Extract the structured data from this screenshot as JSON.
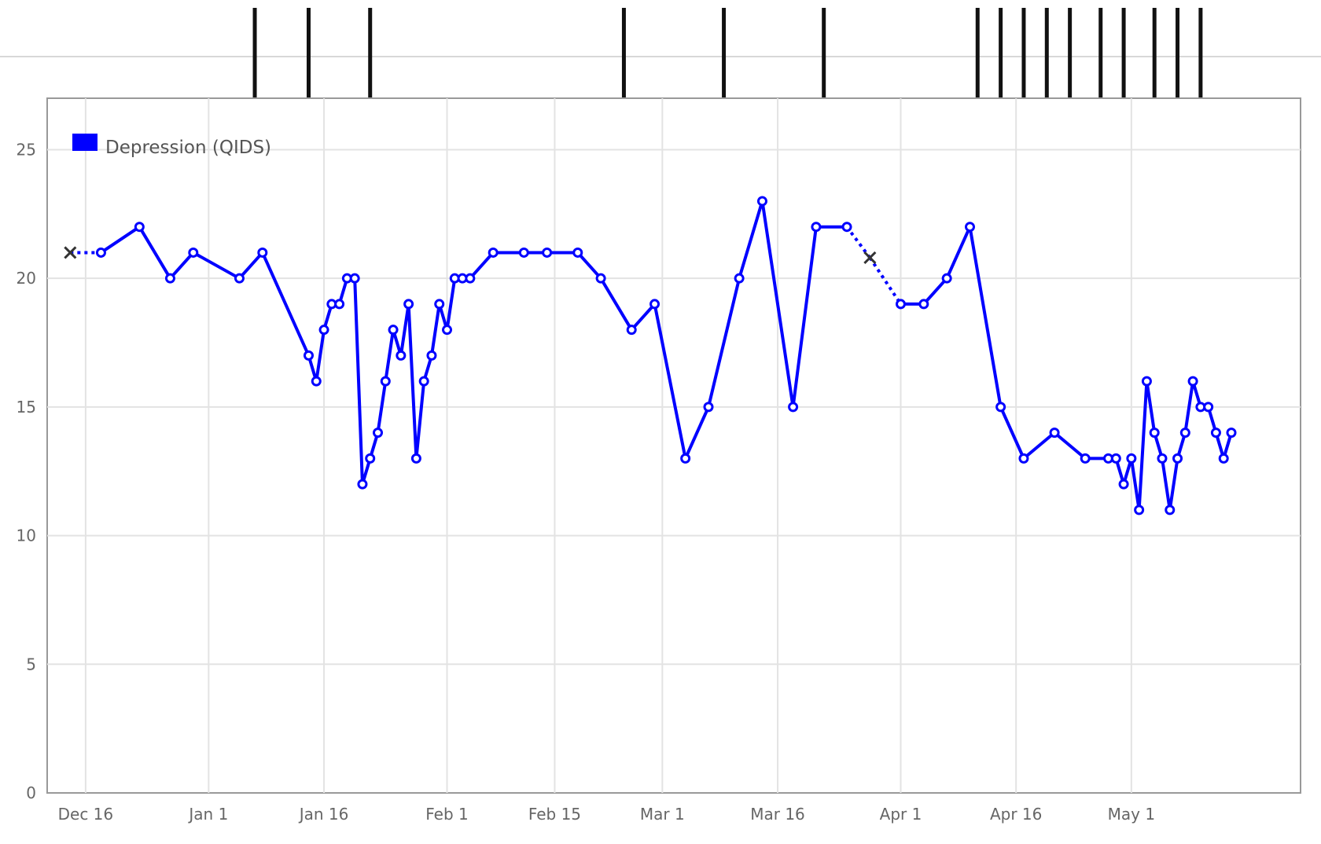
{
  "chart_data": {
    "type": "line",
    "title": "",
    "xlabel": "",
    "ylabel": "",
    "ylim": [
      0,
      27
    ],
    "xlim": [
      "Dec 11",
      "May 23"
    ],
    "grid": true,
    "legend_position": "top-left",
    "x_ticks": [
      {
        "date": "Dec 16",
        "label": "Dec 16"
      },
      {
        "date": "Jan 1",
        "label": "Jan 1"
      },
      {
        "date": "Jan 16",
        "label": "Jan 16"
      },
      {
        "date": "Feb 1",
        "label": "Feb 1"
      },
      {
        "date": "Feb 15",
        "label": "Feb 15"
      },
      {
        "date": "Mar 1",
        "label": "Mar 1"
      },
      {
        "date": "Mar 16",
        "label": "Mar 16"
      },
      {
        "date": "Apr 1",
        "label": "Apr 1"
      },
      {
        "date": "Apr 16",
        "label": "Apr 16"
      },
      {
        "date": "May 1",
        "label": "May 1"
      }
    ],
    "y_ticks": [
      "0",
      "5",
      "10",
      "15",
      "20",
      "25"
    ],
    "series": [
      {
        "name": "Depression (QIDS)",
        "color": "#0000ff",
        "points": [
          {
            "x": "Dec 18",
            "y": 21
          },
          {
            "x": "Dec 23",
            "y": 22
          },
          {
            "x": "Dec 27",
            "y": 20
          },
          {
            "x": "Dec 30",
            "y": 21
          },
          {
            "x": "Jan 5",
            "y": 20
          },
          {
            "x": "Jan 8",
            "y": 21
          },
          {
            "x": "Jan 14",
            "y": 17
          },
          {
            "x": "Jan 15",
            "y": 16
          },
          {
            "x": "Jan 16",
            "y": 18
          },
          {
            "x": "Jan 17",
            "y": 19
          },
          {
            "x": "Jan 18",
            "y": 19
          },
          {
            "x": "Jan 19",
            "y": 20
          },
          {
            "x": "Jan 20",
            "y": 20
          },
          {
            "x": "Jan 21",
            "y": 12
          },
          {
            "x": "Jan 22",
            "y": 13
          },
          {
            "x": "Jan 23",
            "y": 14
          },
          {
            "x": "Jan 24",
            "y": 16
          },
          {
            "x": "Jan 25",
            "y": 18
          },
          {
            "x": "Jan 26",
            "y": 17
          },
          {
            "x": "Jan 27",
            "y": 19
          },
          {
            "x": "Jan 28",
            "y": 13
          },
          {
            "x": "Jan 29",
            "y": 16
          },
          {
            "x": "Jan 30",
            "y": 17
          },
          {
            "x": "Jan 31",
            "y": 19
          },
          {
            "x": "Feb 1",
            "y": 18
          },
          {
            "x": "Feb 2",
            "y": 20
          },
          {
            "x": "Feb 3",
            "y": 20
          },
          {
            "x": "Feb 4",
            "y": 20
          },
          {
            "x": "Feb 7",
            "y": 21
          },
          {
            "x": "Feb 11",
            "y": 21
          },
          {
            "x": "Feb 14",
            "y": 21
          },
          {
            "x": "Feb 18",
            "y": 21
          },
          {
            "x": "Feb 21",
            "y": 20
          },
          {
            "x": "Feb 25",
            "y": 18
          },
          {
            "x": "Feb 28",
            "y": 19
          },
          {
            "x": "Mar 4",
            "y": 13
          },
          {
            "x": "Mar 7",
            "y": 15
          },
          {
            "x": "Mar 11",
            "y": 20
          },
          {
            "x": "Mar 14",
            "y": 23
          },
          {
            "x": "Mar 18",
            "y": 15
          },
          {
            "x": "Mar 21",
            "y": 22
          },
          {
            "x": "Mar 25",
            "y": 22
          },
          {
            "x": "Apr 1",
            "y": 19
          },
          {
            "x": "Apr 4",
            "y": 19
          },
          {
            "x": "Apr 7",
            "y": 20
          },
          {
            "x": "Apr 10",
            "y": 22
          },
          {
            "x": "Apr 14",
            "y": 15
          },
          {
            "x": "Apr 17",
            "y": 13
          },
          {
            "x": "Apr 21",
            "y": 14
          },
          {
            "x": "Apr 25",
            "y": 13
          },
          {
            "x": "Apr 28",
            "y": 13
          },
          {
            "x": "Apr 29",
            "y": 13
          },
          {
            "x": "Apr 30",
            "y": 12
          },
          {
            "x": "May 1",
            "y": 13
          },
          {
            "x": "May 2",
            "y": 11
          },
          {
            "x": "May 3",
            "y": 16
          },
          {
            "x": "May 4",
            "y": 14
          },
          {
            "x": "May 5",
            "y": 13
          },
          {
            "x": "May 6",
            "y": 11
          },
          {
            "x": "May 7",
            "y": 13
          },
          {
            "x": "May 8",
            "y": 14
          },
          {
            "x": "May 9",
            "y": 16
          },
          {
            "x": "May 10",
            "y": 15
          },
          {
            "x": "May 11",
            "y": 15
          },
          {
            "x": "May 12",
            "y": 14
          },
          {
            "x": "May 13",
            "y": 13
          },
          {
            "x": "May 14",
            "y": 14
          }
        ],
        "missing_markers": [
          {
            "x": "Dec 14",
            "y": 21,
            "dashed_to": "Dec 18"
          },
          {
            "x": "Mar 28",
            "y": 20.8,
            "dashed_from": "Mar 25",
            "dashed_to": "Apr 1"
          }
        ]
      }
    ],
    "event_marks": [
      "Jan 7",
      "Jan 14",
      "Jan 22",
      "Feb 24",
      "Mar 9",
      "Mar 22",
      "Apr 11",
      "Apr 14",
      "Apr 17",
      "Apr 20",
      "Apr 23",
      "Apr 27",
      "Apr 30",
      "May 4",
      "May 7",
      "May 10"
    ]
  }
}
